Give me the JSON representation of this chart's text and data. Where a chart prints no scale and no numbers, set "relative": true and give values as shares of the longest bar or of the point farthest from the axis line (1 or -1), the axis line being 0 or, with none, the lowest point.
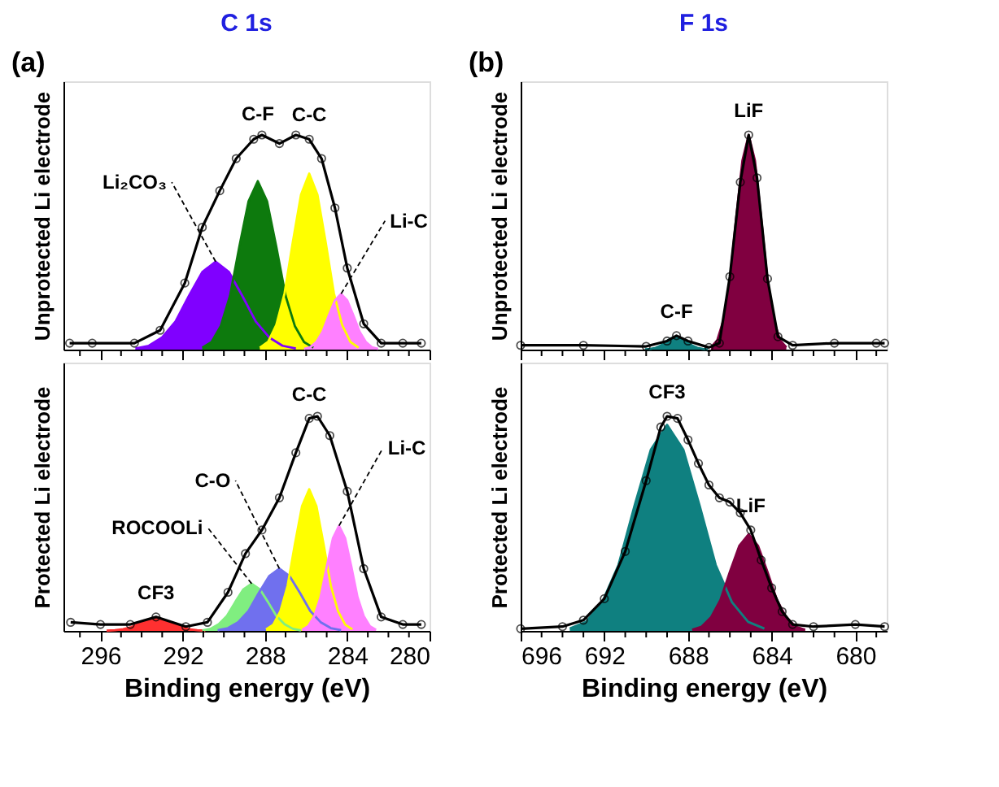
{
  "chart_data": [
    {
      "type": "area",
      "title": "C 1s",
      "ylabel": "Unprotected Li electrode",
      "relative": true,
      "tick_labels": false,
      "xlim": [
        297.8,
        280
      ],
      "xticks": [
        {
          "value": 297,
          "label": null
        },
        296,
        {
          "value": 295,
          "label": null
        },
        {
          "value": 294,
          "label": null
        },
        {
          "value": 293,
          "label": null
        },
        292,
        {
          "value": 291,
          "label": null
        },
        {
          "value": 290,
          "label": null
        },
        {
          "value": 289,
          "label": null
        },
        288,
        {
          "value": 287,
          "label": null
        },
        {
          "value": 286,
          "label": null
        },
        {
          "value": 285,
          "label": null
        },
        284,
        {
          "value": 283,
          "label": null
        },
        {
          "value": 282,
          "label": null
        },
        {
          "value": 281,
          "label": null
        },
        280
      ],
      "annotations": [
        "(a)",
        {
          "text": "C-F",
          "x": 288.35,
          "y": 0.985
        },
        {
          "text": "C-C",
          "x": 285.85,
          "y": 0.98
        },
        {
          "text": "Li-C",
          "x": 284.3,
          "y": 0.26
        },
        {
          "text": "Li₂CO₃",
          "x": 290.4,
          "y": 0.41
        }
      ],
      "series": [
        {
          "color": "#8000ff",
          "x": [
            294.3,
            293.65,
            293.0,
            292.35,
            291.7,
            291.05,
            290.4,
            289.75,
            289.1,
            288.45,
            287.8,
            287.15,
            286.5
          ],
          "values": [
            0.005,
            0.018,
            0.057,
            0.131,
            0.25,
            0.361,
            0.41,
            0.361,
            0.25,
            0.131,
            0.057,
            0.018,
            0.005
          ]
        },
        {
          "color": "#0d7a0d",
          "x": [
            291.05,
            290.6,
            290.15,
            289.7,
            289.25,
            288.8,
            288.35,
            287.9,
            287.45,
            287.0,
            286.55,
            286.1,
            285.65
          ],
          "values": [
            0.009,
            0.035,
            0.11,
            0.251,
            0.479,
            0.691,
            0.785,
            0.691,
            0.479,
            0.251,
            0.11,
            0.035,
            0.009
          ]
        },
        {
          "color": "#ffff00",
          "x": [
            288.25,
            287.85,
            287.45,
            287.05,
            286.65,
            286.25,
            285.85,
            285.45,
            285.05,
            284.65,
            284.25,
            283.85,
            283.45
          ],
          "values": [
            0.009,
            0.036,
            0.115,
            0.262,
            0.5,
            0.722,
            0.82,
            0.722,
            0.5,
            0.262,
            0.115,
            0.036,
            0.009
          ]
        },
        {
          "color": "#ff80ff",
          "x": [
            286.1,
            285.8,
            285.5,
            285.2,
            284.9,
            284.6,
            284.3,
            284.0,
            283.7,
            283.4,
            283.1,
            282.8,
            282.5
          ],
          "values": [
            0.003,
            0.011,
            0.036,
            0.083,
            0.159,
            0.229,
            0.26,
            0.229,
            0.159,
            0.083,
            0.036,
            0.011,
            0.003
          ]
        },
        {
          "type": "line",
          "color": "#000000",
          "marker": "circle",
          "x": [
            297.5,
            296.4,
            294.35,
            293.1,
            291.9,
            291.05,
            290.2,
            289.4,
            288.55,
            288.15,
            287.3,
            286.5,
            285.85,
            285.25,
            284.6,
            284.0,
            283.2,
            282.35,
            281.3,
            280.4
          ],
          "values": [
            0.03,
            0.03,
            0.03,
            0.09,
            0.31,
            0.57,
            0.74,
            0.89,
            0.98,
            1.0,
            0.96,
            1.0,
            0.98,
            0.89,
            0.66,
            0.38,
            0.12,
            0.03,
            0.03,
            0.03
          ]
        }
      ]
    },
    {
      "type": "area",
      "title": "F 1s",
      "ylabel": "Unprotected Li electrode",
      "relative": true,
      "tick_labels": false,
      "xlim": [
        696,
        678.5
      ],
      "xticks": [
        696,
        {
          "value": 695,
          "label": null
        },
        {
          "value": 694,
          "label": null
        },
        {
          "value": 693,
          "label": null
        },
        692,
        {
          "value": 691,
          "label": null
        },
        {
          "value": 690,
          "label": null
        },
        {
          "value": 689,
          "label": null
        },
        688,
        {
          "value": 687,
          "label": null
        },
        {
          "value": 686,
          "label": null
        },
        {
          "value": 685,
          "label": null
        },
        684,
        {
          "value": 683,
          "label": null
        },
        {
          "value": 682,
          "label": null
        },
        {
          "value": 681,
          "label": null
        },
        680,
        {
          "value": 679,
          "label": null
        }
      ],
      "annotations": [
        "(b)",
        {
          "text": "LiF",
          "x": 685.1,
          "y": 1.0
        },
        {
          "text": "C-F",
          "x": 688.55,
          "y": 0.065
        }
      ],
      "series": [
        {
          "color": "#0f8080",
          "x": [
            690.05,
            689.8,
            689.55,
            689.3,
            689.05,
            688.8,
            688.55,
            688.3,
            688.05,
            687.8,
            687.55,
            687.3,
            687.05
          ],
          "values": [
            0.001,
            0.003,
            0.008,
            0.019,
            0.037,
            0.053,
            0.06,
            0.053,
            0.037,
            0.019,
            0.008,
            0.003,
            0.001
          ]
        },
        {
          "color": "#800040",
          "x": [
            686.9,
            686.6,
            686.3,
            686.0,
            685.7,
            685.4,
            685.1,
            684.8,
            684.5,
            684.2,
            683.9,
            683.6,
            683.3
          ],
          "values": [
            0.011,
            0.044,
            0.14,
            0.32,
            0.61,
            0.88,
            1,
            0.88,
            0.61,
            0.32,
            0.14,
            0.044,
            0.011
          ]
        },
        {
          "type": "line",
          "color": "#000000",
          "marker": "circle",
          "x": [
            696,
            693,
            690,
            689,
            688.55,
            688,
            687,
            686.5,
            686,
            685.5,
            685.1,
            684.7,
            684.2,
            683.7,
            683,
            681,
            679,
            678.6
          ],
          "values": [
            0.02,
            0.02,
            0.015,
            0.04,
            0.065,
            0.04,
            0.01,
            0.03,
            0.34,
            0.78,
            1.0,
            0.8,
            0.33,
            0.06,
            0.02,
            0.03,
            0.03,
            0.03
          ]
        }
      ]
    },
    {
      "type": "area",
      "xlabel": "Binding energy (eV)",
      "ylabel": "Protected Li electrode",
      "relative": true,
      "tick_labels": "x",
      "xlim": [
        297.8,
        280
      ],
      "xticks": [
        {
          "value": 297,
          "label": null
        },
        296,
        {
          "value": 295,
          "label": null
        },
        {
          "value": 294,
          "label": null
        },
        {
          "value": 293,
          "label": null
        },
        292,
        {
          "value": 291,
          "label": null
        },
        {
          "value": 290,
          "label": null
        },
        {
          "value": 289,
          "label": null
        },
        288,
        {
          "value": 287,
          "label": null
        },
        {
          "value": 286,
          "label": null
        },
        {
          "value": 285,
          "label": null
        },
        284,
        {
          "value": 283,
          "label": null
        },
        {
          "value": 282,
          "label": null
        },
        {
          "value": 281,
          "label": null
        },
        280
      ],
      "annotations": [
        {
          "text": "C-C",
          "x": 285.85,
          "y": 0.99
        },
        {
          "text": "C-O",
          "x": 287.3,
          "y": 0.29
        },
        {
          "text": "ROCOOLi",
          "x": 288.65,
          "y": 0.22
        },
        {
          "text": "Li-C",
          "x": 284.4,
          "y": 0.49
        },
        {
          "text": "CF3",
          "x": 293.3,
          "y": 0.065
        }
      ],
      "series": [
        {
          "color": "#ff3030",
          "x": [
            295.7,
            295.3,
            294.9,
            294.5,
            294.1,
            293.7,
            293.3,
            292.9,
            292.5,
            292.1,
            291.7,
            291.3,
            290.9
          ],
          "values": [
            0.001,
            0.003,
            0.008,
            0.018,
            0.035,
            0.05,
            0.057,
            0.05,
            0.035,
            0.018,
            0.008,
            0.003,
            0.001
          ]
        },
        {
          "color": "#80ee80",
          "x": [
            291.05,
            290.65,
            290.25,
            289.85,
            289.45,
            289.05,
            288.65,
            288.25,
            287.85,
            287.45,
            287.05,
            286.65,
            286.25
          ],
          "values": [
            0.002,
            0.01,
            0.031,
            0.07,
            0.134,
            0.194,
            0.22,
            0.194,
            0.134,
            0.07,
            0.031,
            0.01,
            0.002
          ]
        },
        {
          "color": "#7070ee",
          "x": [
            290.3,
            289.8,
            289.3,
            288.8,
            288.3,
            287.8,
            287.3,
            286.8,
            286.3,
            285.8,
            285.3,
            284.8,
            284.3
          ],
          "values": [
            0.003,
            0.013,
            0.041,
            0.093,
            0.177,
            0.255,
            0.29,
            0.255,
            0.177,
            0.093,
            0.041,
            0.013,
            0.003
          ]
        },
        {
          "color": "#ffff00",
          "x": [
            287.95,
            287.6,
            287.25,
            286.9,
            286.55,
            286.2,
            285.85,
            285.5,
            285.15,
            284.8,
            284.45,
            284.1,
            283.75
          ],
          "values": [
            0.007,
            0.029,
            0.092,
            0.211,
            0.403,
            0.581,
            0.66,
            0.581,
            0.403,
            0.211,
            0.092,
            0.029,
            0.007
          ]
        },
        {
          "color": "#ff80ff",
          "x": [
            286.2,
            285.9,
            285.6,
            285.3,
            285.0,
            284.7,
            284.4,
            284.1,
            283.8,
            283.5,
            283.2,
            282.9,
            282.6
          ],
          "values": [
            0.005,
            0.022,
            0.069,
            0.157,
            0.299,
            0.431,
            0.49,
            0.431,
            0.299,
            0.157,
            0.069,
            0.022,
            0.005
          ]
        },
        {
          "type": "line",
          "color": "#000000",
          "marker": "circle",
          "x": [
            297.45,
            296.0,
            294.55,
            293.3,
            291.85,
            290.8,
            289.8,
            288.95,
            288.15,
            287.3,
            286.5,
            285.85,
            285.45,
            284.85,
            284.0,
            283.2,
            282.35,
            281.3,
            280.4
          ],
          "values": [
            0.04,
            0.03,
            0.03,
            0.065,
            0.02,
            0.04,
            0.18,
            0.36,
            0.47,
            0.62,
            0.83,
            0.99,
            1.0,
            0.91,
            0.65,
            0.29,
            0.065,
            0.03,
            0.03
          ]
        }
      ]
    },
    {
      "type": "area",
      "xlabel": "Binding energy (eV)",
      "ylabel": "Protected Li electrode",
      "relative": true,
      "tick_labels": "x",
      "xlim": [
        696,
        678.5
      ],
      "xticks": [
        696,
        {
          "value": 695,
          "label": null
        },
        {
          "value": 694,
          "label": null
        },
        {
          "value": 693,
          "label": null
        },
        692,
        {
          "value": 691,
          "label": null
        },
        {
          "value": 690,
          "label": null
        },
        {
          "value": 689,
          "label": null
        },
        688,
        {
          "value": 687,
          "label": null
        },
        {
          "value": 686,
          "label": null
        },
        {
          "value": 685,
          "label": null
        },
        684,
        {
          "value": 683,
          "label": null
        },
        {
          "value": 682,
          "label": null
        },
        {
          "value": 681,
          "label": null
        },
        680,
        {
          "value": 679,
          "label": null
        }
      ],
      "annotations": [
        {
          "text": "CF3",
          "x": 689.0,
          "y": 1.0
        },
        {
          "text": "LiF",
          "x": 685.0,
          "y": 0.47
        }
      ],
      "series": [
        {
          "color": "#0f8080",
          "x": [
            693.65,
            692.875,
            692.1,
            691.325,
            690.55,
            689.775,
            689.0,
            688.225,
            687.45,
            686.675,
            685.9,
            685.125,
            684.35
          ],
          "values": [
            0.011,
            0.042,
            0.134,
            0.307,
            0.586,
            0.845,
            0.96,
            0.845,
            0.586,
            0.307,
            0.134,
            0.042,
            0.011
          ]
        },
        {
          "color": "#800040",
          "x": [
            687.8,
            687.35,
            686.9,
            686.45,
            686.0,
            685.55,
            685.1,
            684.65,
            684.2,
            683.75,
            683.3,
            682.85,
            682.4
          ],
          "values": [
            0.005,
            0.02,
            0.063,
            0.144,
            0.275,
            0.396,
            0.45,
            0.396,
            0.275,
            0.144,
            0.063,
            0.02,
            0.005
          ]
        },
        {
          "type": "line",
          "color": "#000000",
          "marker": "circle",
          "x": [
            696,
            694,
            693,
            692,
            691,
            690,
            689.3,
            689,
            688.5,
            688,
            687.5,
            687,
            686.5,
            686,
            685.5,
            685,
            684.5,
            684,
            683.5,
            683,
            682,
            680,
            678.6
          ],
          "values": [
            0.01,
            0.02,
            0.05,
            0.15,
            0.37,
            0.7,
            0.95,
            1.0,
            0.99,
            0.89,
            0.78,
            0.68,
            0.62,
            0.6,
            0.55,
            0.47,
            0.33,
            0.2,
            0.09,
            0.03,
            0.02,
            0.03,
            0.02
          ]
        }
      ]
    }
  ]
}
